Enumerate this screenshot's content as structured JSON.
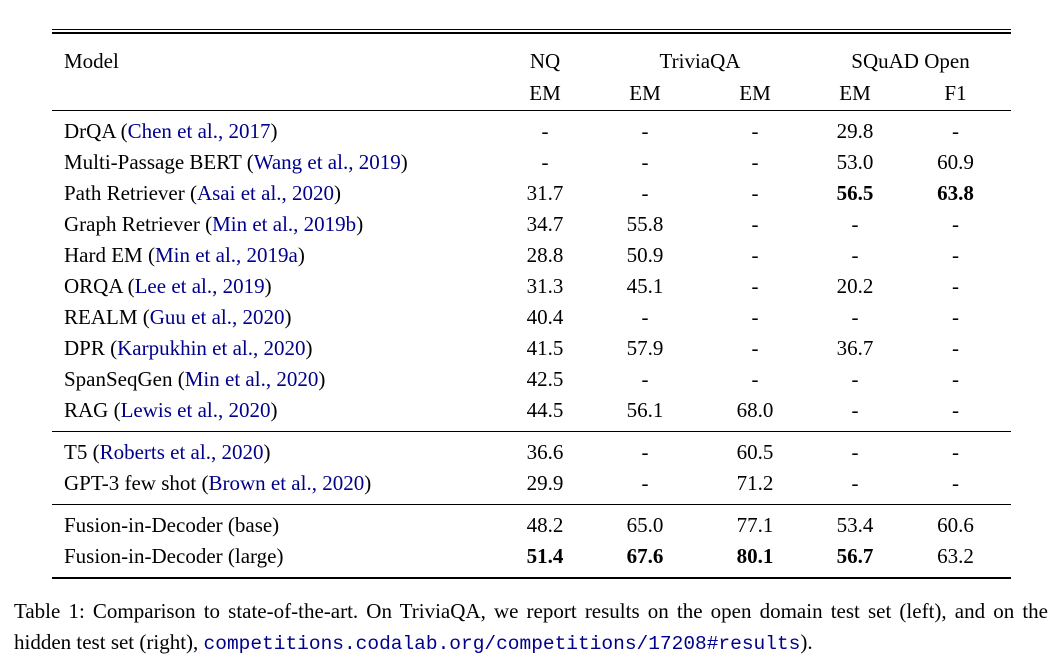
{
  "colors": {
    "text": "#000000",
    "link_blue": "#00008b",
    "rule": "#000000",
    "background": "#ffffff"
  },
  "table": {
    "header": {
      "model_label": "Model",
      "groups": [
        {
          "label": "NQ",
          "span": 1
        },
        {
          "label": "TriviaQA",
          "span": 2
        },
        {
          "label": "SQuAD Open",
          "span": 2
        }
      ],
      "metrics": [
        "EM",
        "EM",
        "EM",
        "EM",
        "F1"
      ]
    },
    "sections": [
      {
        "rows": [
          {
            "name": "DrQA",
            "citation": "Chen et al., 2017",
            "values": [
              "-",
              "-",
              "-",
              "29.8",
              "-"
            ]
          },
          {
            "name": "Multi-Passage BERT",
            "citation": "Wang et al., 2019",
            "values": [
              "-",
              "-",
              "-",
              "53.0",
              "60.9"
            ]
          },
          {
            "name": "Path Retriever",
            "citation": "Asai et al., 2020",
            "values": [
              "31.7",
              "-",
              "-",
              "56.5",
              "63.8"
            ],
            "bold": [
              false,
              false,
              false,
              true,
              true
            ]
          },
          {
            "name": "Graph Retriever",
            "citation": "Min et al., 2019b",
            "values": [
              "34.7",
              "55.8",
              "-",
              "-",
              "-"
            ]
          },
          {
            "name": "Hard EM",
            "citation": "Min et al., 2019a",
            "values": [
              "28.8",
              "50.9",
              "-",
              "-",
              "-"
            ]
          },
          {
            "name": "ORQA",
            "citation": "Lee et al., 2019",
            "values": [
              "31.3",
              "45.1",
              "-",
              "20.2",
              "-"
            ]
          },
          {
            "name": "REALM",
            "citation": "Guu et al., 2020",
            "values": [
              "40.4",
              "-",
              "-",
              "-",
              "-"
            ]
          },
          {
            "name": "DPR",
            "citation": "Karpukhin et al., 2020",
            "values": [
              "41.5",
              "57.9",
              "-",
              "36.7",
              "-"
            ]
          },
          {
            "name": "SpanSeqGen",
            "citation": "Min et al., 2020",
            "values": [
              "42.5",
              "-",
              "-",
              "-",
              "-"
            ]
          },
          {
            "name": "RAG",
            "citation": "Lewis et al., 2020",
            "values": [
              "44.5",
              "56.1",
              "68.0",
              "-",
              "-"
            ]
          }
        ]
      },
      {
        "rows": [
          {
            "name": "T5",
            "citation": "Roberts et al., 2020",
            "values": [
              "36.6",
              "-",
              "60.5",
              "-",
              "-"
            ]
          },
          {
            "name": "GPT-3 few shot",
            "citation": "Brown et al., 2020",
            "values": [
              "29.9",
              "-",
              "71.2",
              "-",
              "-"
            ]
          }
        ]
      },
      {
        "rows": [
          {
            "name": "Fusion-in-Decoder (base)",
            "citation": null,
            "values": [
              "48.2",
              "65.0",
              "77.1",
              "53.4",
              "60.6"
            ]
          },
          {
            "name": "Fusion-in-Decoder (large)",
            "citation": null,
            "values": [
              "51.4",
              "67.6",
              "80.1",
              "56.7",
              "63.2"
            ],
            "bold": [
              true,
              true,
              true,
              true,
              false
            ]
          }
        ]
      }
    ]
  },
  "caption": {
    "prefix": "Table 1: Comparison to state-of-the-art. On TriviaQA, we report results on the open domain test set (left), and on the hidden test set (right), ",
    "link": "competitions.codalab.org/competitions/17208#results",
    "suffix": ")."
  }
}
